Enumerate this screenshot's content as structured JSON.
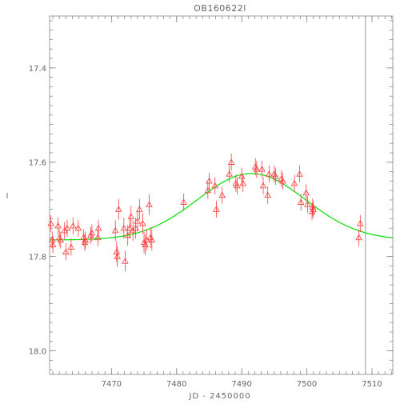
{
  "chart_data": {
    "type": "scatter",
    "title": "OB160622l",
    "xlabel": "JD - 2450000",
    "ylabel": "I",
    "xlim": [
      7460.5,
      7513.2
    ],
    "ylim": [
      18.05,
      17.29
    ],
    "y_inverted": true,
    "x_major_ticks": [
      7470,
      7480,
      7490,
      7500,
      7510
    ],
    "x_minor_step": 1,
    "y_major_ticks": [
      17.4,
      17.6,
      17.8,
      18.0
    ],
    "y_minor_step": 0.02,
    "x_tick_labels": [
      "7470",
      "7480",
      "7490",
      "7500",
      "7510"
    ],
    "y_tick_labels": [
      "17.4",
      "17.6",
      "17.8",
      "18.0"
    ],
    "marker_color": "#ff3b3b",
    "model_color": "#00e000",
    "vertical_line": {
      "x": 7509.0,
      "color": "#888888"
    },
    "model": {
      "baseline": 17.765,
      "peak": 17.624,
      "t0": 7491.5,
      "tE": 8.3
    },
    "points": [
      [
        7460.7,
        17.73,
        0.018
      ],
      [
        7460.9,
        17.765,
        0.018
      ],
      [
        7461.0,
        17.775,
        0.018
      ],
      [
        7461.8,
        17.735,
        0.018
      ],
      [
        7462.0,
        17.76,
        0.018
      ],
      [
        7462.2,
        17.765,
        0.018
      ],
      [
        7462.8,
        17.745,
        0.018
      ],
      [
        7463.0,
        17.79,
        0.018
      ],
      [
        7463.2,
        17.74,
        0.018
      ],
      [
        7463.8,
        17.78,
        0.018
      ],
      [
        7464.1,
        17.735,
        0.018
      ],
      [
        7464.9,
        17.74,
        0.018
      ],
      [
        7465.7,
        17.76,
        0.018
      ],
      [
        7465.9,
        17.77,
        0.018
      ],
      [
        7466.0,
        17.765,
        0.018
      ],
      [
        7466.8,
        17.755,
        0.018
      ],
      [
        7467.0,
        17.75,
        0.018
      ],
      [
        7467.9,
        17.76,
        0.018
      ],
      [
        7468.0,
        17.74,
        0.018
      ],
      [
        7470.6,
        17.745,
        0.022
      ],
      [
        7470.8,
        17.79,
        0.022
      ],
      [
        7470.9,
        17.8,
        0.022
      ],
      [
        7471.1,
        17.7,
        0.022
      ],
      [
        7471.9,
        17.74,
        0.022
      ],
      [
        7472.1,
        17.81,
        0.022
      ],
      [
        7472.5,
        17.755,
        0.022
      ],
      [
        7472.8,
        17.74,
        0.022
      ],
      [
        7473.0,
        17.715,
        0.022
      ],
      [
        7473.3,
        17.745,
        0.022
      ],
      [
        7473.7,
        17.74,
        0.022
      ],
      [
        7474.0,
        17.725,
        0.022
      ],
      [
        7474.3,
        17.7,
        0.022
      ],
      [
        7474.8,
        17.73,
        0.022
      ],
      [
        7475.0,
        17.77,
        0.022
      ],
      [
        7475.2,
        17.775,
        0.022
      ],
      [
        7475.4,
        17.765,
        0.022
      ],
      [
        7475.8,
        17.69,
        0.022
      ],
      [
        7476.0,
        17.76,
        0.022
      ],
      [
        7476.2,
        17.765,
        0.022
      ],
      [
        7481.1,
        17.685,
        0.018
      ],
      [
        7484.8,
        17.66,
        0.018
      ],
      [
        7485.0,
        17.64,
        0.018
      ],
      [
        7485.9,
        17.65,
        0.018
      ],
      [
        7486.1,
        17.7,
        0.018
      ],
      [
        7487.0,
        17.67,
        0.018
      ],
      [
        7488.1,
        17.625,
        0.018
      ],
      [
        7488.4,
        17.6,
        0.018
      ],
      [
        7489.1,
        17.645,
        0.018
      ],
      [
        7489.3,
        17.65,
        0.018
      ],
      [
        7490.0,
        17.63,
        0.018
      ],
      [
        7490.2,
        17.645,
        0.018
      ],
      [
        7492.1,
        17.61,
        0.018
      ],
      [
        7492.3,
        17.615,
        0.018
      ],
      [
        7493.1,
        17.615,
        0.018
      ],
      [
        7493.3,
        17.65,
        0.018
      ],
      [
        7494.0,
        17.67,
        0.018
      ],
      [
        7494.2,
        17.625,
        0.018
      ],
      [
        7495.0,
        17.625,
        0.018
      ],
      [
        7495.2,
        17.63,
        0.018
      ],
      [
        7496.1,
        17.635,
        0.018
      ],
      [
        7496.3,
        17.64,
        0.018
      ],
      [
        7498.1,
        17.645,
        0.018
      ],
      [
        7498.9,
        17.625,
        0.018
      ],
      [
        7499.1,
        17.685,
        0.018
      ],
      [
        7499.9,
        17.665,
        0.018
      ],
      [
        7500.1,
        17.69,
        0.018
      ],
      [
        7500.9,
        17.695,
        0.018
      ],
      [
        7501.0,
        17.7,
        0.018
      ],
      [
        7500.8,
        17.705,
        0.018
      ],
      [
        7508.2,
        17.73,
        0.018
      ],
      [
        7508.0,
        17.76,
        0.018
      ]
    ]
  }
}
